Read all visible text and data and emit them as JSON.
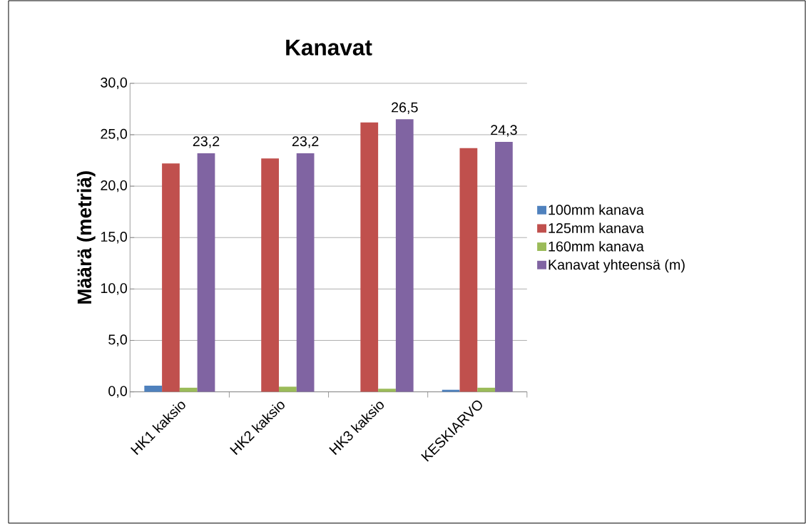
{
  "chart_data": {
    "type": "bar",
    "title": "Kanavat",
    "ylabel": "Määrä (metriä)",
    "categories": [
      "HK1 kaksio",
      "HK2 kaksio",
      "HK3 kaksio",
      "KESKIARVO"
    ],
    "series": [
      {
        "name": "100mm kanava",
        "color": "#4f81bd",
        "values": [
          0.6,
          0,
          0,
          0.2
        ]
      },
      {
        "name": "125mm kanava",
        "color": "#c0504d",
        "values": [
          22.2,
          22.7,
          26.2,
          23.7
        ]
      },
      {
        "name": "160mm kanava",
        "color": "#9bbb59",
        "values": [
          0.4,
          0.5,
          0.3,
          0.4
        ]
      },
      {
        "name": "Kanavat yhteensä (m)",
        "color": "#8064a2",
        "values": [
          23.2,
          23.2,
          26.5,
          24.3
        ],
        "value_labels": [
          "23,2",
          "23,2",
          "26,5",
          "24,3"
        ]
      }
    ],
    "ylim": [
      0,
      30
    ],
    "yticks": [
      {
        "value": 0,
        "label": "0,0"
      },
      {
        "value": 5,
        "label": "5,0"
      },
      {
        "value": 10,
        "label": "10,0"
      },
      {
        "value": 15,
        "label": "15,0"
      },
      {
        "value": 20,
        "label": "20,0"
      },
      {
        "value": 25,
        "label": "25,0"
      },
      {
        "value": 30,
        "label": "30,0"
      }
    ],
    "grid": "y",
    "legend": "right"
  }
}
